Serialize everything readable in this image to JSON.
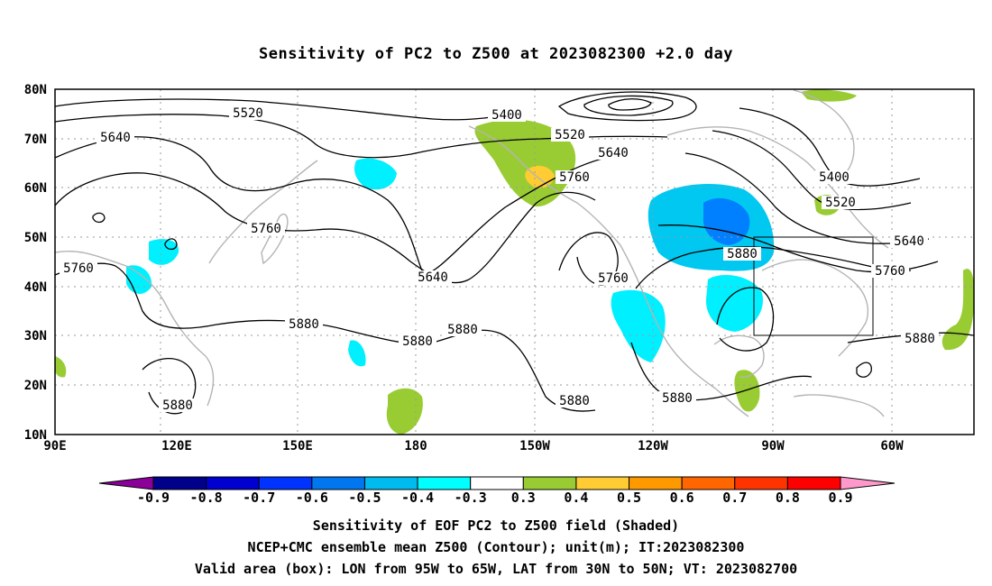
{
  "title": "Sensitivity of PC2 to Z500 at 2023082300 +2.0 day",
  "lat_labels": [
    "80N",
    "70N",
    "60N",
    "50N",
    "40N",
    "30N",
    "20N",
    "10N"
  ],
  "lon_labels": [
    "90E",
    "120E",
    "150E",
    "180",
    "150W",
    "120W",
    "90W",
    "60W"
  ],
  "contour_labels": [
    "5520",
    "5400",
    "5640",
    "5520",
    "5640",
    "5760",
    "5400",
    "5520",
    "5760",
    "5640",
    "5880",
    "5640",
    "5760",
    "5760",
    "5880",
    "5880",
    "5880",
    "5880",
    "5880",
    "5880",
    "5880",
    "5760"
  ],
  "colorbar": {
    "labels": [
      "-0.9",
      "-0.8",
      "-0.7",
      "-0.6",
      "-0.5",
      "-0.4",
      "-0.3",
      "0.3",
      "0.4",
      "0.5",
      "0.6",
      "0.7",
      "0.8",
      "0.9"
    ],
    "colors": [
      "#8b0099",
      "#00008b",
      "#0000d0",
      "#0033ff",
      "#0077ee",
      "#00bbee",
      "#00ffff",
      "#ffffff",
      "#99cc33",
      "#ffcc33",
      "#ff9900",
      "#ff6600",
      "#ff3300",
      "#ff0000",
      "#ff99cc"
    ]
  },
  "footer": {
    "line1": "Sensitivity of EOF PC2 to Z500 field (Shaded)",
    "line2": "NCEP+CMC ensemble mean Z500 (Contour); unit(m); IT:2023082300",
    "line3": "Valid area (box): LON from 95W to 65W, LAT from 30N to 50N; VT: 2023082700"
  },
  "colors": {
    "land": "#b4b4b4",
    "contour": "#000000",
    "grid": "#9a9a9a",
    "green": "#99cc33",
    "cyan": "#00f0ff",
    "lightblue": "#00c8f0",
    "blue": "#0080ff"
  }
}
